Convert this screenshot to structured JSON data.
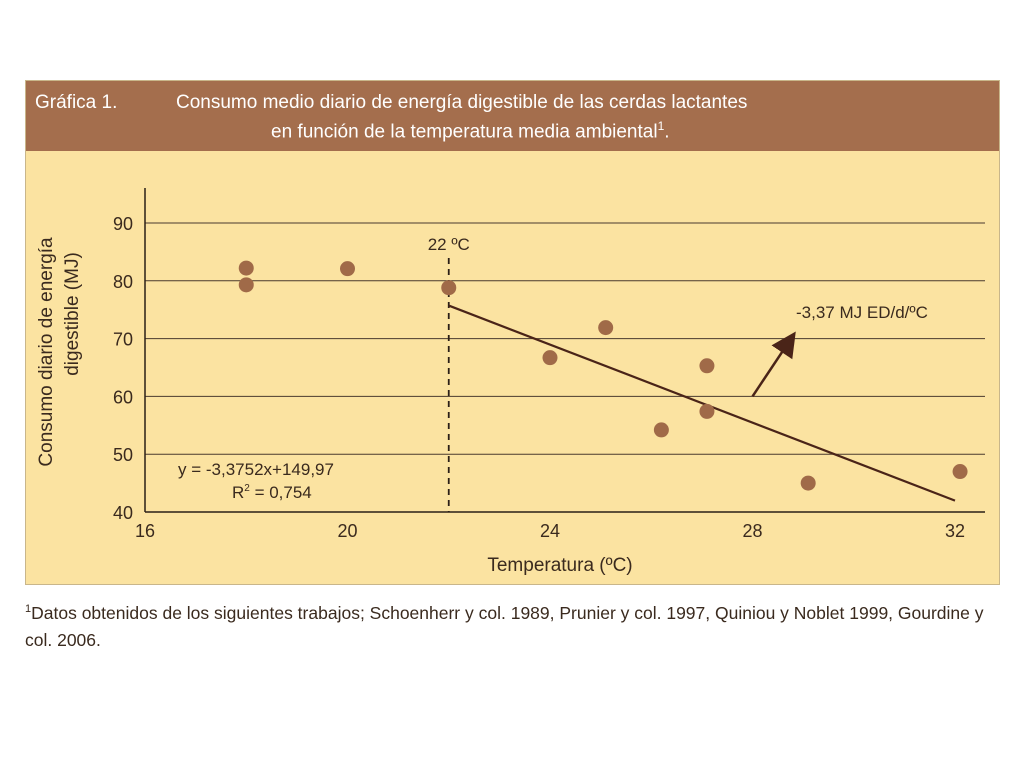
{
  "header": {
    "label": "Gráfica 1.",
    "title_line1": "Consumo medio diario de energía digestible de las cerdas lactantes",
    "title_line2": "en función de la temperatura media ambiental",
    "title_sup": "1",
    "title_end": "."
  },
  "chart_data": {
    "type": "scatter",
    "title": "Consumo medio diario de energía digestible de las cerdas lactantes en función de la temperatura media ambiental",
    "xlabel": "Temperatura (ºC)",
    "ylabel_line1": "Consumo diario de energía",
    "ylabel_line2": "digestible (MJ)",
    "xlim": [
      16,
      32
    ],
    "ylim": [
      40,
      90
    ],
    "xticks": [
      16,
      20,
      24,
      28,
      32
    ],
    "yticks": [
      40,
      50,
      60,
      70,
      80,
      90
    ],
    "grid": "horizontal",
    "series": [
      {
        "points": [
          {
            "x": 18,
            "y": 82.2
          },
          {
            "x": 18,
            "y": 79.3
          },
          {
            "x": 20,
            "y": 82.1
          },
          {
            "x": 22,
            "y": 78.8
          },
          {
            "x": 24,
            "y": 66.7
          },
          {
            "x": 25.1,
            "y": 71.9
          },
          {
            "x": 26.2,
            "y": 54.2
          },
          {
            "x": 27.1,
            "y": 65.3
          },
          {
            "x": 27.1,
            "y": 57.4
          },
          {
            "x": 29.1,
            "y": 45.0
          },
          {
            "x": 32.1,
            "y": 47.0
          }
        ],
        "color": "#a06a48"
      }
    ],
    "trendline": {
      "x_start": 22,
      "x_end": 32,
      "slope": -3.3752,
      "intercept": 149.97,
      "color": "#4a2418"
    },
    "threshold": {
      "x": 22,
      "label": "22 ºC"
    },
    "equation": "y = -3,3752x+149,97",
    "r2_prefix": "R",
    "r2_sup": "2",
    "r2_value": " = 0,754",
    "slope_annotation": "-3,37 MJ ED/d/ºC",
    "annotation_arrow": {
      "from": [
        28,
        60
      ],
      "to": [
        28.8,
        70.5
      ]
    }
  },
  "footnote": {
    "sup": "1",
    "text": "Datos obtenidos de los siguientes trabajos; Schoenherr y col. 1989, Prunier y col. 1997, Quiniou y Noblet 1999, Gourdine y col. 2006."
  }
}
